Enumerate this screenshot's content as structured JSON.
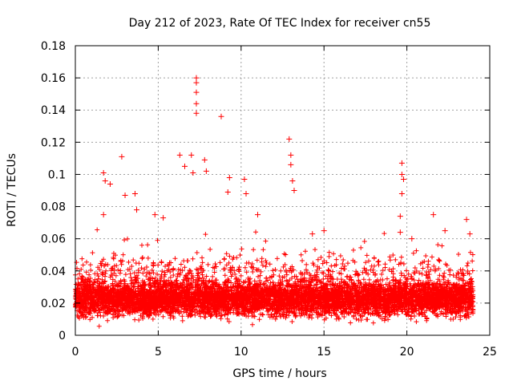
{
  "chart_data": {
    "type": "scatter",
    "title": "Day 212 of 2023, Rate Of TEC Index for receiver cn55",
    "xlabel": "GPS time / hours",
    "ylabel": "ROTI / TECUs",
    "xlim": [
      0,
      25
    ],
    "ylim": [
      0,
      0.18
    ],
    "x_ticks": [
      "0",
      "5",
      "10",
      "15",
      "20",
      "25"
    ],
    "y_ticks": [
      "0",
      "0.02",
      "0.04",
      "0.06",
      "0.08",
      "0.1",
      "0.12",
      "0.14",
      "0.16",
      "0.18"
    ],
    "grid": true,
    "marker": "+",
    "color": "#ff0000",
    "dense_band": {
      "x_range": [
        0,
        24
      ],
      "y_typical_range": [
        0.005,
        0.04
      ],
      "y_median": 0.02
    },
    "series": [
      {
        "name": "ROTI",
        "notable_points": [
          {
            "x": 1.7,
            "y": 0.101
          },
          {
            "x": 1.8,
            "y": 0.096
          },
          {
            "x": 2.1,
            "y": 0.094
          },
          {
            "x": 1.7,
            "y": 0.075
          },
          {
            "x": 2.8,
            "y": 0.111
          },
          {
            "x": 3.0,
            "y": 0.087
          },
          {
            "x": 3.6,
            "y": 0.088
          },
          {
            "x": 3.7,
            "y": 0.078
          },
          {
            "x": 6.3,
            "y": 0.112
          },
          {
            "x": 6.6,
            "y": 0.105
          },
          {
            "x": 7.0,
            "y": 0.112
          },
          {
            "x": 7.1,
            "y": 0.101
          },
          {
            "x": 7.3,
            "y": 0.16
          },
          {
            "x": 7.3,
            "y": 0.157
          },
          {
            "x": 7.3,
            "y": 0.151
          },
          {
            "x": 7.3,
            "y": 0.144
          },
          {
            "x": 7.3,
            "y": 0.138
          },
          {
            "x": 7.8,
            "y": 0.109
          },
          {
            "x": 7.9,
            "y": 0.102
          },
          {
            "x": 8.8,
            "y": 0.136
          },
          {
            "x": 9.3,
            "y": 0.098
          },
          {
            "x": 9.2,
            "y": 0.089
          },
          {
            "x": 10.2,
            "y": 0.097
          },
          {
            "x": 10.3,
            "y": 0.088
          },
          {
            "x": 12.9,
            "y": 0.122
          },
          {
            "x": 13.0,
            "y": 0.112
          },
          {
            "x": 13.0,
            "y": 0.106
          },
          {
            "x": 13.1,
            "y": 0.096
          },
          {
            "x": 13.2,
            "y": 0.09
          },
          {
            "x": 19.7,
            "y": 0.107
          },
          {
            "x": 19.7,
            "y": 0.1
          },
          {
            "x": 19.8,
            "y": 0.097
          },
          {
            "x": 19.7,
            "y": 0.088
          },
          {
            "x": 19.6,
            "y": 0.074
          },
          {
            "x": 19.6,
            "y": 0.064
          },
          {
            "x": 21.6,
            "y": 0.075
          },
          {
            "x": 23.6,
            "y": 0.072
          },
          {
            "x": 23.8,
            "y": 0.063
          },
          {
            "x": 4.8,
            "y": 0.075
          },
          {
            "x": 5.3,
            "y": 0.073
          },
          {
            "x": 11.0,
            "y": 0.075
          },
          {
            "x": 14.3,
            "y": 0.063
          },
          {
            "x": 15.0,
            "y": 0.065
          },
          {
            "x": 20.3,
            "y": 0.06
          },
          {
            "x": 22.3,
            "y": 0.065
          }
        ]
      }
    ]
  }
}
